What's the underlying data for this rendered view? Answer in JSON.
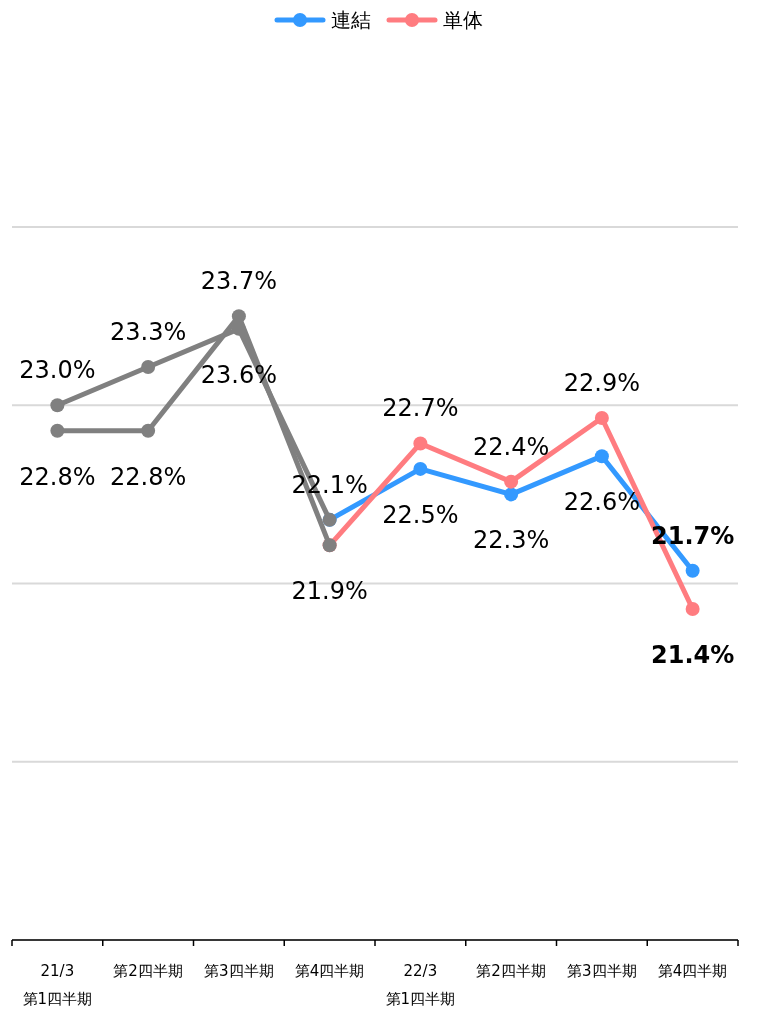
{
  "chart_data": {
    "type": "line",
    "categories": [
      "21/3\n第1四半期",
      "第2四半期",
      "第3四半期",
      "第4四半期",
      "22/3\n第1四半期",
      "第2四半期",
      "第3四半期",
      "第4四半期"
    ],
    "ylim": [
      18.8,
      24.4
    ],
    "yticks": [
      {
        "value": 18.8,
        "label": null
      },
      {
        "value": 20.2,
        "label": null
      },
      {
        "value": 21.6,
        "label": null
      },
      {
        "value": 23.0,
        "label": null
      },
      {
        "value": 24.4,
        "label": null
      }
    ],
    "tick_labels": "x",
    "grid": "y",
    "legend": "top",
    "marker": "circle",
    "line_style": "solid",
    "data_labels": true,
    "series": [
      {
        "name": "連結",
        "color": "#3399ff",
        "values": [
          null,
          null,
          null,
          22.1,
          22.5,
          22.3,
          22.6,
          21.7
        ],
        "value_labels": [
          null,
          null,
          null,
          null,
          "22.5%",
          "22.3%",
          "22.6%",
          "**21.7%**"
        ]
      },
      {
        "name": "単体",
        "color": "#ff7c80",
        "values": [
          null,
          null,
          null,
          21.9,
          22.7,
          22.4,
          22.9,
          21.4
        ],
        "value_labels": [
          null,
          null,
          null,
          null,
          "22.7%",
          "22.4%",
          "22.9%",
          "**21.4%**"
        ]
      },
      {
        "color": "#808080",
        "values": [
          23.0,
          23.3,
          23.6,
          22.1,
          null,
          null,
          null,
          null
        ],
        "value_labels": [
          "23.0%",
          "23.3%",
          "23.6%",
          "22.1%",
          null,
          null,
          null,
          null
        ]
      },
      {
        "color": "#808080",
        "values": [
          22.8,
          22.8,
          23.7,
          21.9,
          null,
          null,
          null,
          null
        ],
        "value_labels": [
          "22.8%",
          "22.8%",
          "23.7%",
          "21.9%",
          null,
          null,
          null,
          null
        ]
      }
    ]
  }
}
